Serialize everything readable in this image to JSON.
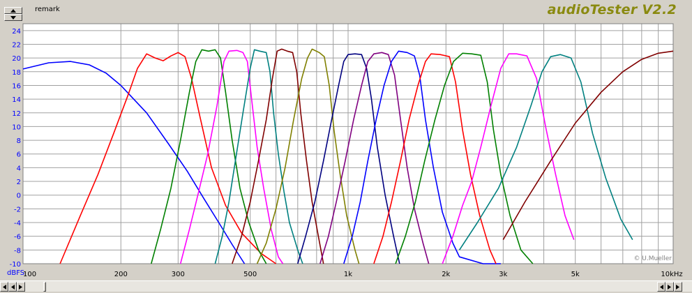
{
  "app": {
    "brand": "audioTester V2.2",
    "remark_label": "remark"
  },
  "controls": {
    "spin_up": "arrow-up-icon",
    "spin_down": "arrow-down-icon"
  },
  "chart_data": {
    "type": "line",
    "title": "",
    "xlabel": "",
    "ylabel": "dBFS",
    "x_scale": "log",
    "xlim": [
      100,
      10000
    ],
    "ylim": [
      -10,
      25
    ],
    "grid": true,
    "y_ticks": [
      24,
      22,
      20,
      18,
      16,
      14,
      12,
      10,
      8,
      6,
      4,
      2,
      0,
      -2,
      -4,
      -6,
      -8,
      -10
    ],
    "x_tick_labels": [
      {
        "label": "100",
        "value": 100
      },
      {
        "label": "200",
        "value": 200
      },
      {
        "label": "300",
        "value": 300
      },
      {
        "label": "500",
        "value": 500
      },
      {
        "label": "1k",
        "value": 1000
      },
      {
        "label": "2k",
        "value": 2000
      },
      {
        "label": "3k",
        "value": 3000
      },
      {
        "label": "5k",
        "value": 5000
      },
      {
        "label": "10kHz",
        "value": 10000
      }
    ],
    "x_grid": [
      100,
      200,
      300,
      400,
      500,
      600,
      700,
      800,
      900,
      1000,
      2000,
      3000,
      4000,
      5000,
      6000,
      7000,
      8000,
      9000,
      10000
    ],
    "annotation": "© U.Mueller",
    "series": [
      {
        "color": "#0000ff",
        "points": [
          [
            100,
            18.4
          ],
          [
            120,
            19.3
          ],
          [
            140,
            19.5
          ],
          [
            160,
            19.0
          ],
          [
            180,
            17.8
          ],
          [
            200,
            16.0
          ],
          [
            240,
            12.0
          ],
          [
            280,
            7.5
          ],
          [
            320,
            3.5
          ],
          [
            360,
            -0.5
          ],
          [
            400,
            -4.0
          ],
          [
            440,
            -7.2
          ],
          [
            480,
            -10.0
          ]
        ]
      },
      {
        "color": "#ff0000",
        "points": [
          [
            130,
            -10
          ],
          [
            150,
            -3
          ],
          [
            170,
            3
          ],
          [
            190,
            9
          ],
          [
            210,
            14.5
          ],
          [
            225,
            18.5
          ],
          [
            240,
            20.6
          ],
          [
            255,
            20.0
          ],
          [
            270,
            19.6
          ],
          [
            285,
            20.3
          ],
          [
            300,
            20.8
          ],
          [
            315,
            20.2
          ],
          [
            330,
            17.0
          ],
          [
            350,
            11.5
          ],
          [
            380,
            4.0
          ],
          [
            420,
            -1.5
          ],
          [
            470,
            -5.5
          ],
          [
            540,
            -8.5
          ],
          [
            600,
            -10
          ]
        ]
      },
      {
        "color": "#008000",
        "points": [
          [
            248,
            -10
          ],
          [
            265,
            -5
          ],
          [
            285,
            1
          ],
          [
            305,
            8
          ],
          [
            325,
            15
          ],
          [
            340,
            19.5
          ],
          [
            355,
            21.2
          ],
          [
            372,
            21.0
          ],
          [
            390,
            21.2
          ],
          [
            405,
            20.0
          ],
          [
            420,
            15.0
          ],
          [
            440,
            8.0
          ],
          [
            465,
            1.0
          ],
          [
            495,
            -4.0
          ],
          [
            530,
            -8.0
          ],
          [
            560,
            -10
          ]
        ]
      },
      {
        "color": "#ff00ff",
        "points": [
          [
            305,
            -10
          ],
          [
            325,
            -5
          ],
          [
            345,
            0
          ],
          [
            370,
            6
          ],
          [
            395,
            13
          ],
          [
            415,
            19.5
          ],
          [
            430,
            21.0
          ],
          [
            455,
            21.1
          ],
          [
            475,
            20.8
          ],
          [
            490,
            19.5
          ],
          [
            505,
            14.0
          ],
          [
            525,
            7.0
          ],
          [
            550,
            1.0
          ],
          [
            580,
            -5.0
          ],
          [
            610,
            -9.0
          ],
          [
            630,
            -10
          ]
        ]
      },
      {
        "color": "#008080",
        "points": [
          [
            390,
            -10
          ],
          [
            410,
            -6
          ],
          [
            430,
            -1
          ],
          [
            450,
            5
          ],
          [
            475,
            12
          ],
          [
            500,
            18.5
          ],
          [
            515,
            21.2
          ],
          [
            535,
            21.0
          ],
          [
            560,
            20.8
          ],
          [
            575,
            18.0
          ],
          [
            590,
            12.0
          ],
          [
            610,
            6.0
          ],
          [
            635,
            0.5
          ],
          [
            660,
            -4.0
          ],
          [
            700,
            -8.0
          ],
          [
            725,
            -10
          ]
        ]
      },
      {
        "color": "#800000",
        "points": [
          [
            440,
            -10
          ],
          [
            470,
            -6
          ],
          [
            500,
            -1
          ],
          [
            530,
            5
          ],
          [
            560,
            11
          ],
          [
            585,
            17
          ],
          [
            605,
            21.0
          ],
          [
            625,
            21.3
          ],
          [
            650,
            21.0
          ],
          [
            675,
            20.8
          ],
          [
            695,
            18.0
          ],
          [
            715,
            12.0
          ],
          [
            745,
            5.0
          ],
          [
            775,
            -1.0
          ],
          [
            810,
            -6.0
          ],
          [
            840,
            -10
          ]
        ]
      },
      {
        "color": "#808000",
        "points": [
          [
            525,
            -10
          ],
          [
            560,
            -7
          ],
          [
            600,
            -2
          ],
          [
            640,
            4
          ],
          [
            680,
            11
          ],
          [
            720,
            17
          ],
          [
            750,
            20.0
          ],
          [
            775,
            21.3
          ],
          [
            815,
            20.8
          ],
          [
            845,
            20.2
          ],
          [
            875,
            16.0
          ],
          [
            905,
            9.5
          ],
          [
            945,
            3.0
          ],
          [
            990,
            -3.0
          ],
          [
            1050,
            -8.0
          ],
          [
            1080,
            -10
          ]
        ]
      },
      {
        "color": "#000080",
        "points": [
          [
            700,
            -10
          ],
          [
            740,
            -6
          ],
          [
            790,
            -1
          ],
          [
            840,
            5
          ],
          [
            890,
            11
          ],
          [
            935,
            16
          ],
          [
            970,
            19.5
          ],
          [
            1000,
            20.5
          ],
          [
            1050,
            20.6
          ],
          [
            1100,
            20.5
          ],
          [
            1140,
            18.5
          ],
          [
            1180,
            14.0
          ],
          [
            1230,
            7.0
          ],
          [
            1300,
            0.0
          ],
          [
            1380,
            -6.0
          ],
          [
            1440,
            -10
          ]
        ]
      },
      {
        "color": "#800080",
        "points": [
          [
            820,
            -10
          ],
          [
            870,
            -6
          ],
          [
            920,
            -1
          ],
          [
            980,
            5
          ],
          [
            1040,
            11
          ],
          [
            1100,
            16
          ],
          [
            1150,
            19.5
          ],
          [
            1200,
            20.6
          ],
          [
            1270,
            20.8
          ],
          [
            1330,
            20.5
          ],
          [
            1390,
            17.5
          ],
          [
            1450,
            11.0
          ],
          [
            1520,
            4.0
          ],
          [
            1600,
            -2.0
          ],
          [
            1700,
            -7.0
          ],
          [
            1770,
            -10
          ]
        ]
      },
      {
        "color": "#0000ff",
        "points": [
          [
            970,
            -10
          ],
          [
            1030,
            -6
          ],
          [
            1090,
            -1
          ],
          [
            1150,
            5
          ],
          [
            1220,
            11
          ],
          [
            1290,
            16
          ],
          [
            1360,
            19.5
          ],
          [
            1430,
            21.0
          ],
          [
            1520,
            20.8
          ],
          [
            1600,
            20.3
          ],
          [
            1660,
            17.5
          ],
          [
            1730,
            11.0
          ],
          [
            1830,
            4.0
          ],
          [
            1950,
            -2.5
          ],
          [
            2100,
            -7.0
          ],
          [
            2200,
            -9.0
          ],
          [
            2600,
            -10
          ],
          [
            2950,
            -10
          ]
        ]
      },
      {
        "color": "#ff0000",
        "points": [
          [
            1200,
            -10
          ],
          [
            1280,
            -6
          ],
          [
            1360,
            -1
          ],
          [
            1450,
            5
          ],
          [
            1540,
            11
          ],
          [
            1640,
            16
          ],
          [
            1730,
            19.5
          ],
          [
            1800,
            20.6
          ],
          [
            1920,
            20.5
          ],
          [
            2050,
            20.2
          ],
          [
            2140,
            16.5
          ],
          [
            2250,
            9.5
          ],
          [
            2380,
            3.0
          ],
          [
            2540,
            -3.0
          ],
          [
            2730,
            -8.0
          ],
          [
            2850,
            -10
          ]
        ]
      },
      {
        "color": "#008000",
        "points": [
          [
            1400,
            -10
          ],
          [
            1500,
            -6
          ],
          [
            1610,
            -1
          ],
          [
            1720,
            5
          ],
          [
            1850,
            11
          ],
          [
            1980,
            16
          ],
          [
            2110,
            19.5
          ],
          [
            2250,
            20.7
          ],
          [
            2400,
            20.6
          ],
          [
            2560,
            20.4
          ],
          [
            2680,
            16.5
          ],
          [
            2800,
            9.5
          ],
          [
            2950,
            3.0
          ],
          [
            3150,
            -3.0
          ],
          [
            3400,
            -8.0
          ],
          [
            3700,
            -10
          ]
        ]
      },
      {
        "color": "#ff00ff",
        "points": [
          [
            1950,
            -10
          ],
          [
            2100,
            -6
          ],
          [
            2250,
            -1.5
          ],
          [
            2400,
            2
          ],
          [
            2560,
            7
          ],
          [
            2750,
            13
          ],
          [
            2950,
            18.5
          ],
          [
            3120,
            20.6
          ],
          [
            3300,
            20.6
          ],
          [
            3550,
            20.3
          ],
          [
            3800,
            17.0
          ],
          [
            4050,
            10.0
          ],
          [
            4350,
            3.0
          ],
          [
            4650,
            -3.0
          ],
          [
            4950,
            -6.5
          ]
        ]
      },
      {
        "color": "#008080",
        "points": [
          [
            2200,
            -8
          ],
          [
            2500,
            -4
          ],
          [
            2900,
            1
          ],
          [
            3300,
            7
          ],
          [
            3650,
            13
          ],
          [
            3950,
            18
          ],
          [
            4200,
            20.2
          ],
          [
            4500,
            20.5
          ],
          [
            4850,
            20.0
          ],
          [
            5200,
            16.5
          ],
          [
            5650,
            9.0
          ],
          [
            6200,
            2.5
          ],
          [
            6900,
            -3.5
          ],
          [
            7500,
            -6.5
          ]
        ]
      },
      {
        "color": "#800000",
        "points": [
          [
            3000,
            -6.5
          ],
          [
            3500,
            -1
          ],
          [
            4200,
            5
          ],
          [
            5000,
            10.5
          ],
          [
            6000,
            15.0
          ],
          [
            7000,
            18.0
          ],
          [
            8000,
            19.8
          ],
          [
            9000,
            20.7
          ],
          [
            10000,
            21.0
          ]
        ]
      }
    ]
  }
}
